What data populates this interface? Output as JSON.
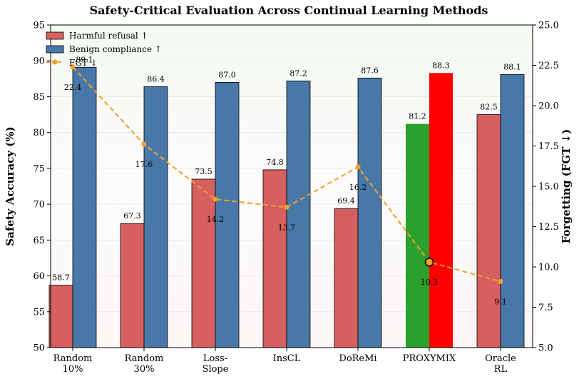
{
  "chart_data": {
    "type": "bar",
    "title": "Safety-Critical Evaluation Across Continual Learning Methods",
    "ylabel": "Safety Accuracy (%)",
    "ylabel_right": "Forgetting (FGT ↓)",
    "ylim": [
      50,
      95
    ],
    "ylim_right": [
      5.0,
      25.0
    ],
    "yticks": [
      "50",
      "55",
      "60",
      "65",
      "70",
      "75",
      "80",
      "85",
      "90",
      "95"
    ],
    "yticks_right": [
      "5.0",
      "7.5",
      "10.0",
      "12.5",
      "15.0",
      "17.5",
      "20.0",
      "22.5",
      "25.0"
    ],
    "categories": [
      [
        "Random",
        "10%"
      ],
      [
        "Random",
        "30%"
      ],
      [
        "Loss-",
        "Slope"
      ],
      [
        "InsCL"
      ],
      [
        "DoReMi"
      ],
      [
        "PROXYMIX"
      ],
      [
        "Oracle",
        "RL"
      ]
    ],
    "series": [
      {
        "name": "Harmful refusal ↑",
        "values": [
          58.7,
          67.3,
          73.5,
          74.8,
          69.4,
          81.2,
          82.5
        ],
        "color": "#d65f5f",
        "highlight_color": "#2ca02c",
        "labels": [
          "58.7",
          "67.3",
          "73.5",
          "74.8",
          "69.4",
          "81.2",
          "82.5"
        ]
      },
      {
        "name": "Benign compliance ↑",
        "values": [
          89.1,
          86.4,
          87.0,
          87.2,
          87.6,
          88.3,
          88.1
        ],
        "color": "#4878a8",
        "highlight_color": "#ff0000",
        "labels": [
          "89.1",
          "86.4",
          "87.0",
          "87.2",
          "87.6",
          "88.3",
          "88.1"
        ]
      },
      {
        "name": "FGT ↓",
        "values": [
          22.4,
          17.6,
          14.2,
          13.7,
          16.2,
          10.3,
          9.1
        ],
        "color": "#f0a030",
        "axis": "right",
        "labels": [
          "22.4",
          "17.6",
          "14.2",
          "13.7",
          "16.2",
          "10.3",
          "9.1"
        ]
      }
    ],
    "highlight_index": 5,
    "legend_position": "top-left",
    "grid": true
  }
}
